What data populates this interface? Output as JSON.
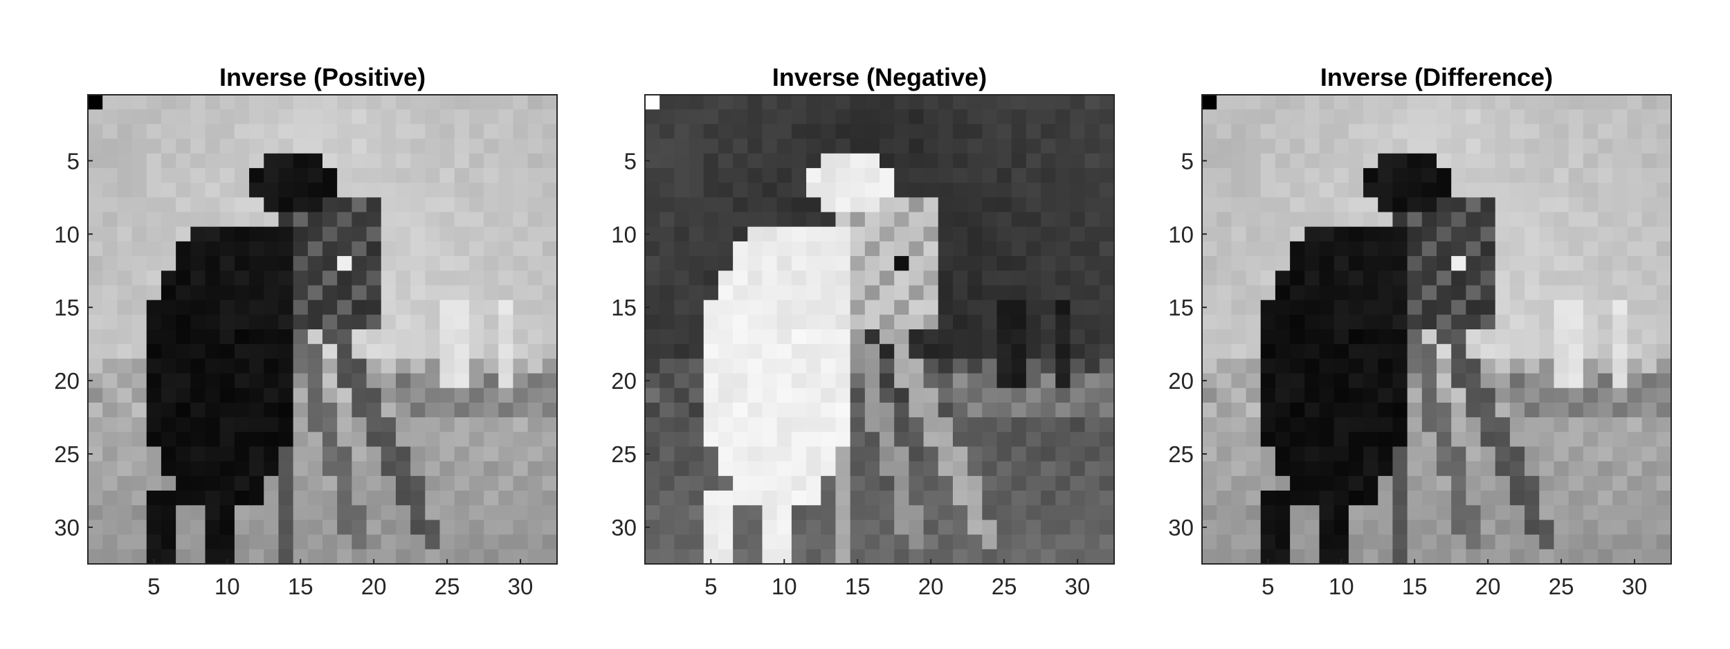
{
  "chart_data": [
    {
      "type": "heatmap",
      "colormap": "gray",
      "title": "Inverse (Positive)",
      "mode": "positive",
      "xticks": [
        "5",
        "10",
        "15",
        "20",
        "25",
        "30"
      ],
      "yticks": [
        "5",
        "10",
        "15",
        "20",
        "25",
        "30"
      ],
      "xlim": [
        0.5,
        32.5
      ],
      "ylim": [
        0.5,
        32.5
      ],
      "grid_size": [
        32,
        32
      ]
    },
    {
      "type": "heatmap",
      "colormap": "gray",
      "title": "Inverse (Negative)",
      "mode": "negative",
      "xticks": [
        "5",
        "10",
        "15",
        "20",
        "25",
        "30"
      ],
      "yticks": [
        "5",
        "10",
        "15",
        "20",
        "25",
        "30"
      ],
      "xlim": [
        0.5,
        32.5
      ],
      "ylim": [
        0.5,
        32.5
      ],
      "grid_size": [
        32,
        32
      ]
    },
    {
      "type": "heatmap",
      "colormap": "gray",
      "title": "Inverse (Difference)",
      "mode": "positive",
      "xticks": [
        "5",
        "10",
        "15",
        "20",
        "25",
        "30"
      ],
      "yticks": [
        "5",
        "10",
        "15",
        "20",
        "25",
        "30"
      ],
      "xlim": [
        0.5,
        32.5
      ],
      "ylim": [
        0.5,
        32.5
      ],
      "grid_size": [
        32,
        32
      ]
    }
  ]
}
